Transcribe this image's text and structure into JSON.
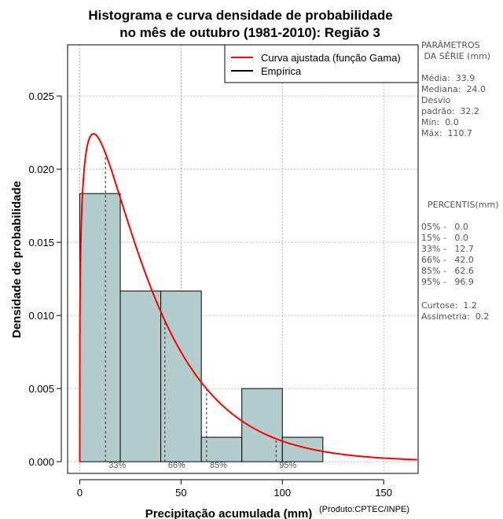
{
  "chart_data": {
    "type": "bar",
    "title_line1": "Histograma e curva densidade de probabilidade",
    "title_line2": "no mês de outubro (1981-2010): Região 3",
    "xlabel": "Precipitação acumulada (mm)",
    "ylabel": "Densidade de probabilidade",
    "credit": "(Produto:CPTEC/INPE)",
    "xlim": [
      -6,
      167
    ],
    "ylim": [
      -0.0008,
      0.0285
    ],
    "x_ticks": [
      0,
      50,
      100,
      150
    ],
    "x_tick_labels": [
      "0",
      "50",
      "100",
      "150"
    ],
    "y_ticks": [
      0.0,
      0.005,
      0.01,
      0.015,
      0.02,
      0.025
    ],
    "y_tick_labels": [
      "0.000",
      "0.005",
      "0.010",
      "0.015",
      "0.020",
      "0.025"
    ],
    "grid": true,
    "bins": [
      {
        "x0": 0,
        "x1": 20,
        "density": 0.01833
      },
      {
        "x0": 20,
        "x1": 40,
        "density": 0.01167
      },
      {
        "x0": 40,
        "x1": 60,
        "density": 0.01167
      },
      {
        "x0": 60,
        "x1": 80,
        "density": 0.00167
      },
      {
        "x0": 80,
        "x1": 100,
        "density": 0.005
      },
      {
        "x0": 100,
        "x1": 120,
        "density": 0.00167
      }
    ],
    "gamma_fit": {
      "shape": 1.25,
      "scale": 27.1
    },
    "percentile_lines": [
      {
        "label": "33%",
        "x": 12.7
      },
      {
        "label": "66%",
        "x": 42.0
      },
      {
        "label": "85%",
        "x": 62.6
      },
      {
        "label": "95%",
        "x": 96.9
      }
    ],
    "percentile_markers": [
      "33%",
      "66%",
      "85%",
      "95%"
    ],
    "legend": [
      {
        "label": "Curva ajustada (função Gama)",
        "color": "#ff0000"
      },
      {
        "label": "Empírica",
        "color": "#000000"
      }
    ],
    "legend_position": "top-right",
    "colors": {
      "bar_fill": "#b3cccc",
      "bar_stroke": "#000000",
      "curve": "#ff0000",
      "grid": "#aaaaaa"
    }
  },
  "side_panel": {
    "params_title": "PARÂMETROS\n DA SÉRIE (mm)",
    "params_list": "Média:  33.9\nMediana:  24.0\nDesvio\npadrão:  32.2\nMín:  0.0\nMáx:  110.7",
    "percentis_title": "PERCENTIS(mm)",
    "percentis_list": "05% -   0.0\n15% -   0.0\n33% -   12.7\n66% -   42.0\n85% -   62.6\n95% -   96.9",
    "stats_list": "Curtose:  1.2\nAssimetria:  0.2"
  }
}
